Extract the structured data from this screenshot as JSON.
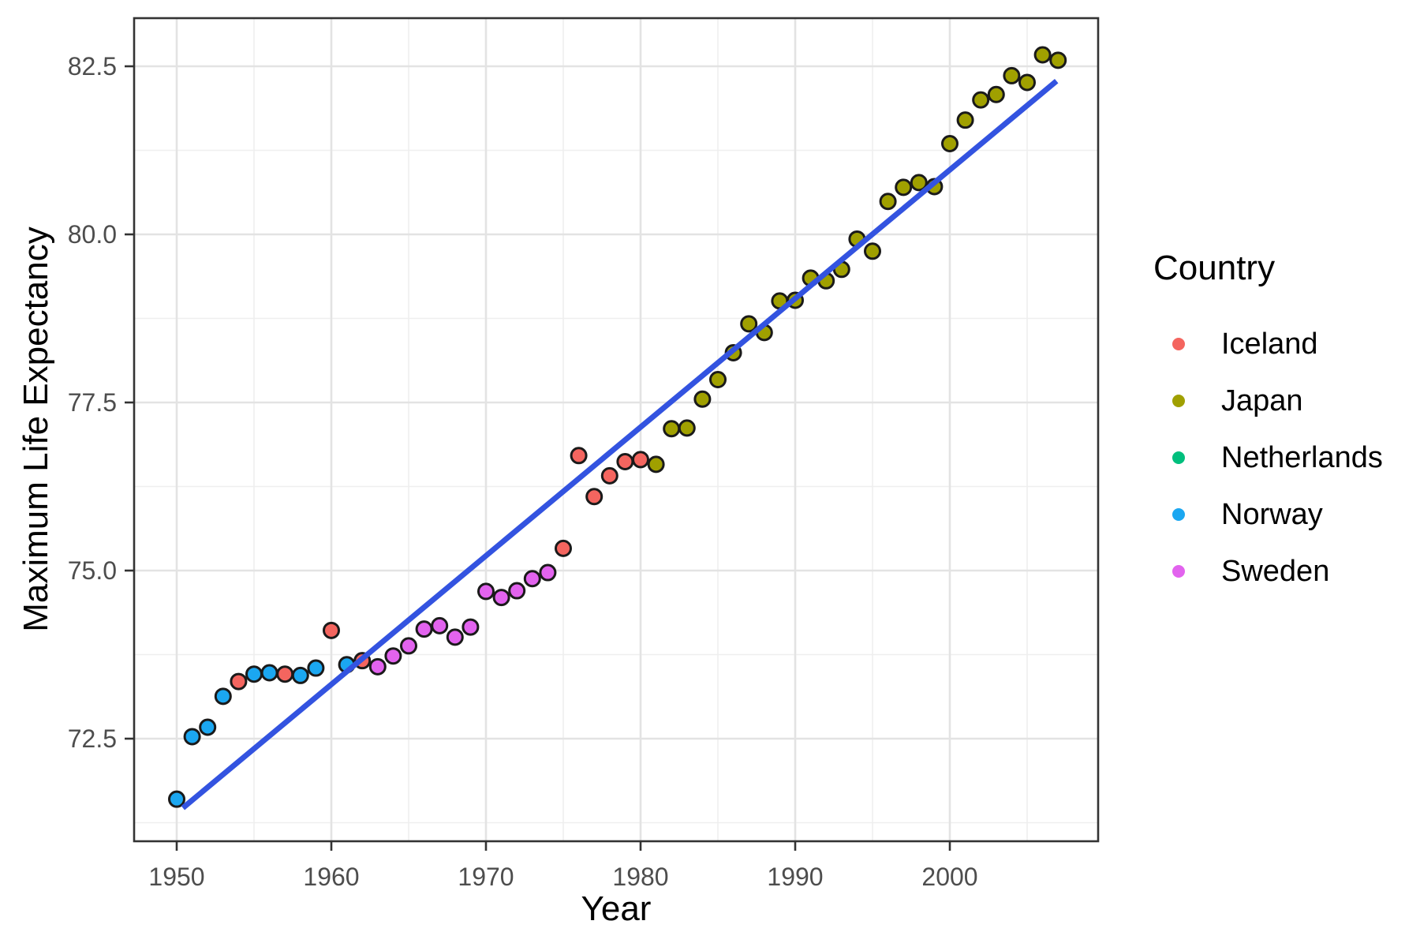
{
  "figure": {
    "x_axis_title": "Year",
    "y_axis_title": "Maximum Life Expectancy"
  },
  "legend": {
    "title": "Country",
    "items": [
      {
        "label": "Iceland",
        "color": "#F4655F"
      },
      {
        "label": "Japan",
        "color": "#A0A000"
      },
      {
        "label": "Netherlands",
        "color": "#00BF7D"
      },
      {
        "label": "Norway",
        "color": "#1BA7F1"
      },
      {
        "label": "Sweden",
        "color": "#E263EE"
      }
    ]
  },
  "chart_data": {
    "type": "scatter",
    "title": "",
    "xlabel": "Year",
    "ylabel": "Maximum Life Expectancy",
    "xlim": [
      1947.2,
      2009.6
    ],
    "ylim": [
      71.0,
      83.25
    ],
    "grid": "major+minor",
    "legend_position": "right",
    "x_major_ticks": [
      1950,
      1960,
      1970,
      1980,
      1990,
      2000
    ],
    "x_major_tick_labels": [
      "1950",
      "1960",
      "1970",
      "1980",
      "1990",
      "2000"
    ],
    "x_minor_gridlines": [
      1955,
      1965,
      1975,
      1985,
      1995,
      2005
    ],
    "y_major_ticks": [
      72.5,
      75.0,
      77.5,
      80.0,
      82.5
    ],
    "y_major_tick_labels": [
      "72.5",
      "75.0",
      "77.5",
      "80.0",
      "82.5"
    ],
    "y_minor_gridlines": [
      71.25,
      73.75,
      76.25,
      78.75,
      81.25
    ],
    "point_style": {
      "radius": 9.5,
      "stroke": "#1A1A1A",
      "stroke_width": 3
    },
    "series": [
      {
        "name": "Iceland",
        "color": "#F4655F",
        "points": [
          [
            1954,
            73.35
          ],
          [
            1957,
            73.46
          ],
          [
            1960,
            74.11
          ],
          [
            1962,
            73.66
          ],
          [
            1975,
            75.33
          ],
          [
            1976,
            76.71
          ],
          [
            1977,
            76.1
          ],
          [
            1978,
            76.41
          ],
          [
            1979,
            76.62
          ],
          [
            1980,
            76.65
          ]
        ]
      },
      {
        "name": "Japan",
        "color": "#A0A000",
        "points": [
          [
            1981,
            76.58
          ],
          [
            1982,
            77.11
          ],
          [
            1983,
            77.12
          ],
          [
            1984,
            77.55
          ],
          [
            1985,
            77.84
          ],
          [
            1986,
            78.24
          ],
          [
            1987,
            78.67
          ],
          [
            1988,
            78.54
          ],
          [
            1989,
            79.01
          ],
          [
            1990,
            79.02
          ],
          [
            1991,
            79.35
          ],
          [
            1992,
            79.31
          ],
          [
            1993,
            79.48
          ],
          [
            1994,
            79.93
          ],
          [
            1995,
            79.75
          ],
          [
            1996,
            80.49
          ],
          [
            1997,
            80.7
          ],
          [
            1998,
            80.77
          ],
          [
            1999,
            80.71
          ],
          [
            2000,
            81.35
          ],
          [
            2001,
            81.7
          ],
          [
            2002,
            82.0
          ],
          [
            2003,
            82.08
          ],
          [
            2004,
            82.36
          ],
          [
            2005,
            82.26
          ],
          [
            2006,
            82.67
          ],
          [
            2007,
            82.59
          ]
        ]
      },
      {
        "name": "Netherlands",
        "color": "#00BF7D",
        "points": []
      },
      {
        "name": "Norway",
        "color": "#1BA7F1",
        "points": [
          [
            1950,
            71.6
          ],
          [
            1951,
            72.53
          ],
          [
            1952,
            72.67
          ],
          [
            1953,
            73.13
          ],
          [
            1955,
            73.46
          ],
          [
            1956,
            73.48
          ],
          [
            1958,
            73.44
          ],
          [
            1959,
            73.55
          ],
          [
            1961,
            73.6
          ]
        ]
      },
      {
        "name": "Sweden",
        "color": "#E263EE",
        "points": [
          [
            1963,
            73.57
          ],
          [
            1964,
            73.73
          ],
          [
            1965,
            73.88
          ],
          [
            1966,
            74.13
          ],
          [
            1967,
            74.18
          ],
          [
            1968,
            74.01
          ],
          [
            1969,
            74.16
          ],
          [
            1970,
            74.69
          ],
          [
            1971,
            74.6
          ],
          [
            1972,
            74.7
          ],
          [
            1973,
            74.88
          ],
          [
            1974,
            74.97
          ]
        ]
      }
    ],
    "trend_line": {
      "type": "linear",
      "color": "#3353E0",
      "width": 7,
      "start": [
        1950.4,
        71.47
      ],
      "end": [
        2006.9,
        82.28
      ]
    }
  }
}
